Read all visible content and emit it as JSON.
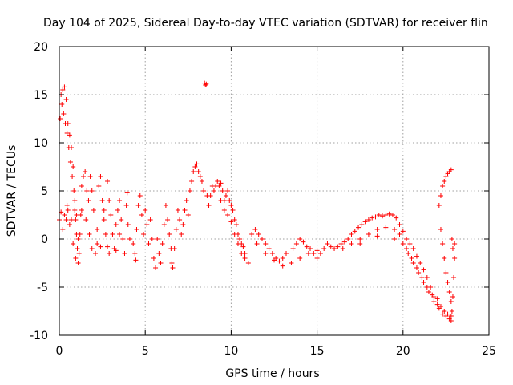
{
  "chart_data": {
    "type": "scatter",
    "title": "Day 104 of 2025, Sidereal Day-to-day VTEC variation (SDTVAR) for receiver flin",
    "xlabel": "GPS time / hours",
    "ylabel": "SDTVAR / TECUs",
    "xlim": [
      0,
      25
    ],
    "ylim": [
      -10,
      20
    ],
    "xticks": [
      0,
      5,
      10,
      15,
      20,
      25
    ],
    "yticks": [
      -10,
      -5,
      0,
      5,
      10,
      15,
      20
    ],
    "xtick_labels": [
      "0",
      "5",
      "10",
      "15",
      "20",
      "25"
    ],
    "ytick_labels": [
      "-10",
      "-5",
      "0",
      "5",
      "10",
      "15",
      "20"
    ],
    "grid": true,
    "legend": "none",
    "marker": "+",
    "series_color": "#ff0000",
    "series": [
      {
        "name": "SDTVAR",
        "points": [
          [
            0.0,
            2.0
          ],
          [
            0.05,
            12.5
          ],
          [
            0.1,
            15.0
          ],
          [
            0.15,
            14.0
          ],
          [
            0.2,
            15.5
          ],
          [
            0.25,
            13.0
          ],
          [
            0.3,
            15.8
          ],
          [
            0.35,
            12.0
          ],
          [
            0.4,
            14.5
          ],
          [
            0.45,
            11.0
          ],
          [
            0.5,
            12.0
          ],
          [
            0.55,
            9.5
          ],
          [
            0.6,
            10.8
          ],
          [
            0.65,
            8.0
          ],
          [
            0.7,
            9.5
          ],
          [
            0.75,
            6.5
          ],
          [
            0.8,
            7.5
          ],
          [
            0.85,
            5.0
          ],
          [
            0.9,
            4.0
          ],
          [
            0.95,
            2.0
          ],
          [
            1.0,
            0.5
          ],
          [
            1.05,
            -1.0
          ],
          [
            1.1,
            -2.5
          ],
          [
            1.15,
            -1.5
          ],
          [
            1.2,
            0.5
          ],
          [
            1.25,
            2.5
          ],
          [
            1.3,
            3.0
          ],
          [
            0.3,
            2.5
          ],
          [
            0.5,
            3.0
          ],
          [
            0.7,
            2.0
          ],
          [
            0.9,
            3.0
          ],
          [
            1.0,
            2.5
          ],
          [
            0.2,
            1.0
          ],
          [
            0.4,
            2.0
          ],
          [
            0.1,
            2.8
          ],
          [
            0.6,
            1.5
          ],
          [
            0.8,
            -0.5
          ],
          [
            0.95,
            -2.0
          ],
          [
            1.1,
            0.0
          ],
          [
            0.45,
            3.5
          ],
          [
            1.3,
            5.5
          ],
          [
            1.4,
            6.5
          ],
          [
            1.5,
            7.0
          ],
          [
            1.6,
            5.0
          ],
          [
            1.7,
            4.0
          ],
          [
            1.8,
            6.5
          ],
          [
            1.9,
            5.0
          ],
          [
            2.0,
            3.0
          ],
          [
            1.55,
            2.0
          ],
          [
            1.75,
            0.5
          ],
          [
            1.9,
            -1.0
          ],
          [
            2.1,
            -1.5
          ],
          [
            2.2,
            -0.5
          ],
          [
            2.3,
            5.5
          ],
          [
            2.4,
            6.5
          ],
          [
            2.5,
            4.0
          ],
          [
            2.6,
            2.0
          ],
          [
            2.7,
            0.5
          ],
          [
            2.8,
            -0.8
          ],
          [
            2.9,
            -1.5
          ],
          [
            2.2,
            1.0
          ],
          [
            2.4,
            -0.8
          ],
          [
            2.6,
            3.0
          ],
          [
            2.8,
            6.0
          ],
          [
            2.9,
            4.0
          ],
          [
            3.0,
            2.5
          ],
          [
            3.1,
            0.5
          ],
          [
            3.2,
            -1.0
          ],
          [
            3.3,
            1.5
          ],
          [
            3.4,
            3.0
          ],
          [
            3.5,
            4.0
          ],
          [
            3.6,
            2.0
          ],
          [
            3.7,
            0.0
          ],
          [
            3.8,
            -1.5
          ],
          [
            3.9,
            3.5
          ],
          [
            3.95,
            4.8
          ],
          [
            3.5,
            0.5
          ],
          [
            3.3,
            -1.2
          ],
          [
            4.0,
            1.5
          ],
          [
            4.1,
            0.0
          ],
          [
            4.3,
            -0.5
          ],
          [
            4.4,
            -1.5
          ],
          [
            4.45,
            -2.2
          ],
          [
            4.5,
            1.0
          ],
          [
            4.6,
            3.5
          ],
          [
            4.7,
            4.5
          ],
          [
            4.8,
            2.5
          ],
          [
            4.9,
            0.5
          ],
          [
            5.0,
            3.0
          ],
          [
            5.1,
            1.5
          ],
          [
            5.2,
            -0.5
          ],
          [
            5.3,
            2.0
          ],
          [
            5.4,
            0.0
          ],
          [
            5.5,
            -2.0
          ],
          [
            5.6,
            -3.0
          ],
          [
            5.7,
            0.0
          ],
          [
            5.8,
            -1.5
          ],
          [
            5.9,
            -2.5
          ],
          [
            6.0,
            -0.5
          ],
          [
            6.1,
            1.5
          ],
          [
            6.2,
            3.5
          ],
          [
            6.3,
            2.0
          ],
          [
            6.4,
            0.5
          ],
          [
            6.5,
            -1.0
          ],
          [
            6.55,
            -2.5
          ],
          [
            6.6,
            -3.0
          ],
          [
            6.7,
            -1.0
          ],
          [
            6.8,
            1.0
          ],
          [
            6.9,
            3.0
          ],
          [
            7.0,
            2.0
          ],
          [
            7.1,
            0.5
          ],
          [
            7.2,
            1.5
          ],
          [
            7.3,
            3.0
          ],
          [
            7.4,
            4.0
          ],
          [
            7.5,
            2.5
          ],
          [
            7.6,
            5.0
          ],
          [
            7.7,
            6.0
          ],
          [
            7.8,
            7.0
          ],
          [
            7.9,
            7.5
          ],
          [
            8.0,
            7.8
          ],
          [
            8.1,
            7.0
          ],
          [
            8.2,
            6.5
          ],
          [
            8.3,
            6.0
          ],
          [
            8.4,
            5.0
          ],
          [
            8.45,
            16.2
          ],
          [
            8.5,
            16.0
          ],
          [
            8.55,
            16.1
          ],
          [
            8.6,
            4.5
          ],
          [
            8.7,
            3.5
          ],
          [
            8.8,
            4.5
          ],
          [
            8.9,
            5.5
          ],
          [
            9.0,
            5.0
          ],
          [
            9.1,
            5.5
          ],
          [
            9.2,
            6.0
          ],
          [
            9.3,
            5.5
          ],
          [
            9.4,
            5.8
          ],
          [
            9.5,
            5.0
          ],
          [
            9.6,
            4.0
          ],
          [
            9.7,
            4.5
          ],
          [
            9.8,
            5.0
          ],
          [
            9.9,
            4.0
          ],
          [
            10.0,
            3.5
          ],
          [
            10.1,
            3.0
          ],
          [
            10.2,
            2.0
          ],
          [
            10.3,
            1.5
          ],
          [
            10.4,
            0.5
          ],
          [
            10.5,
            0.0
          ],
          [
            10.6,
            -0.5
          ],
          [
            10.7,
            -0.8
          ],
          [
            10.8,
            -1.5
          ],
          [
            9.4,
            4.0
          ],
          [
            9.6,
            3.0
          ],
          [
            9.8,
            2.5
          ],
          [
            10.0,
            1.8
          ],
          [
            10.2,
            0.5
          ],
          [
            10.4,
            -0.5
          ],
          [
            10.6,
            -1.5
          ],
          [
            10.8,
            -2.0
          ],
          [
            11.0,
            -2.5
          ],
          [
            11.2,
            0.5
          ],
          [
            11.4,
            1.0
          ],
          [
            11.6,
            0.5
          ],
          [
            11.8,
            0.0
          ],
          [
            12.0,
            -0.5
          ],
          [
            12.2,
            -1.0
          ],
          [
            12.4,
            -1.5
          ],
          [
            12.6,
            -2.0
          ],
          [
            12.8,
            -2.3
          ],
          [
            13.0,
            -2.0
          ],
          [
            13.2,
            -1.5
          ],
          [
            11.5,
            -0.5
          ],
          [
            12.0,
            -1.5
          ],
          [
            12.5,
            -2.2
          ],
          [
            13.0,
            -2.8
          ],
          [
            13.5,
            -2.5
          ],
          [
            14.0,
            -2.0
          ],
          [
            14.5,
            -1.5
          ],
          [
            15.0,
            -1.2
          ],
          [
            13.6,
            -1.0
          ],
          [
            13.8,
            -0.5
          ],
          [
            14.0,
            0.0
          ],
          [
            14.2,
            -0.3
          ],
          [
            14.4,
            -0.8
          ],
          [
            14.6,
            -1.0
          ],
          [
            14.8,
            -1.5
          ],
          [
            15.0,
            -2.0
          ],
          [
            15.2,
            -1.5
          ],
          [
            15.4,
            -1.0
          ],
          [
            15.6,
            -0.5
          ],
          [
            15.8,
            -0.8
          ],
          [
            16.0,
            -1.0
          ],
          [
            16.2,
            -0.8
          ],
          [
            16.4,
            -0.5
          ],
          [
            16.6,
            -0.3
          ],
          [
            16.8,
            0.0
          ],
          [
            17.0,
            0.5
          ],
          [
            17.2,
            0.8
          ],
          [
            17.4,
            1.2
          ],
          [
            17.6,
            1.5
          ],
          [
            17.8,
            1.8
          ],
          [
            18.0,
            2.0
          ],
          [
            18.2,
            2.2
          ],
          [
            18.4,
            2.3
          ],
          [
            18.6,
            2.5
          ],
          [
            18.8,
            2.4
          ],
          [
            19.0,
            2.5
          ],
          [
            19.2,
            2.6
          ],
          [
            19.4,
            2.5
          ],
          [
            19.6,
            2.2
          ],
          [
            19.8,
            1.5
          ],
          [
            17.0,
            -0.5
          ],
          [
            17.5,
            0.0
          ],
          [
            18.0,
            0.5
          ],
          [
            18.5,
            1.0
          ],
          [
            19.0,
            1.2
          ],
          [
            19.5,
            1.0
          ],
          [
            19.8,
            0.5
          ],
          [
            16.5,
            -1.0
          ],
          [
            17.5,
            -0.5
          ],
          [
            18.5,
            0.3
          ],
          [
            19.5,
            0.0
          ],
          [
            20.0,
            0.8
          ],
          [
            20.2,
            0.0
          ],
          [
            20.4,
            -0.5
          ],
          [
            20.6,
            -1.0
          ],
          [
            20.8,
            -1.8
          ],
          [
            21.0,
            -2.5
          ],
          [
            21.2,
            -3.2
          ],
          [
            21.4,
            -4.0
          ],
          [
            21.6,
            -5.0
          ],
          [
            21.8,
            -6.0
          ],
          [
            22.0,
            -6.8
          ],
          [
            20.0,
            -0.5
          ],
          [
            20.3,
            -1.5
          ],
          [
            20.6,
            -2.5
          ],
          [
            20.9,
            -3.5
          ],
          [
            21.2,
            -4.5
          ],
          [
            21.5,
            -5.5
          ],
          [
            21.8,
            -6.5
          ],
          [
            22.1,
            -7.2
          ],
          [
            22.3,
            -7.8
          ],
          [
            22.5,
            -8.0
          ],
          [
            22.7,
            -8.3
          ],
          [
            22.8,
            -8.5
          ],
          [
            20.2,
            -1.0
          ],
          [
            20.5,
            -2.0
          ],
          [
            20.8,
            -3.0
          ],
          [
            21.1,
            -4.0
          ],
          [
            21.4,
            -5.0
          ],
          [
            21.7,
            -5.8
          ],
          [
            22.0,
            -6.2
          ],
          [
            22.2,
            -7.0
          ],
          [
            22.4,
            -7.5
          ],
          [
            22.6,
            -7.8
          ],
          [
            22.8,
            -8.0
          ],
          [
            22.85,
            -7.5
          ],
          [
            22.9,
            -6.0
          ],
          [
            22.95,
            -4.0
          ],
          [
            23.0,
            -2.0
          ],
          [
            22.9,
            -1.0
          ],
          [
            22.85,
            0.0
          ],
          [
            23.0,
            -0.5
          ],
          [
            22.1,
            3.5
          ],
          [
            22.2,
            4.5
          ],
          [
            22.3,
            5.5
          ],
          [
            22.4,
            6.0
          ],
          [
            22.5,
            6.5
          ],
          [
            22.6,
            6.8
          ],
          [
            22.7,
            7.0
          ],
          [
            22.8,
            7.2
          ],
          [
            22.2,
            1.0
          ],
          [
            22.3,
            -0.5
          ],
          [
            22.4,
            -2.0
          ],
          [
            22.5,
            -3.5
          ],
          [
            22.6,
            -4.5
          ],
          [
            22.7,
            -5.5
          ],
          [
            22.8,
            -6.5
          ]
        ]
      }
    ]
  }
}
